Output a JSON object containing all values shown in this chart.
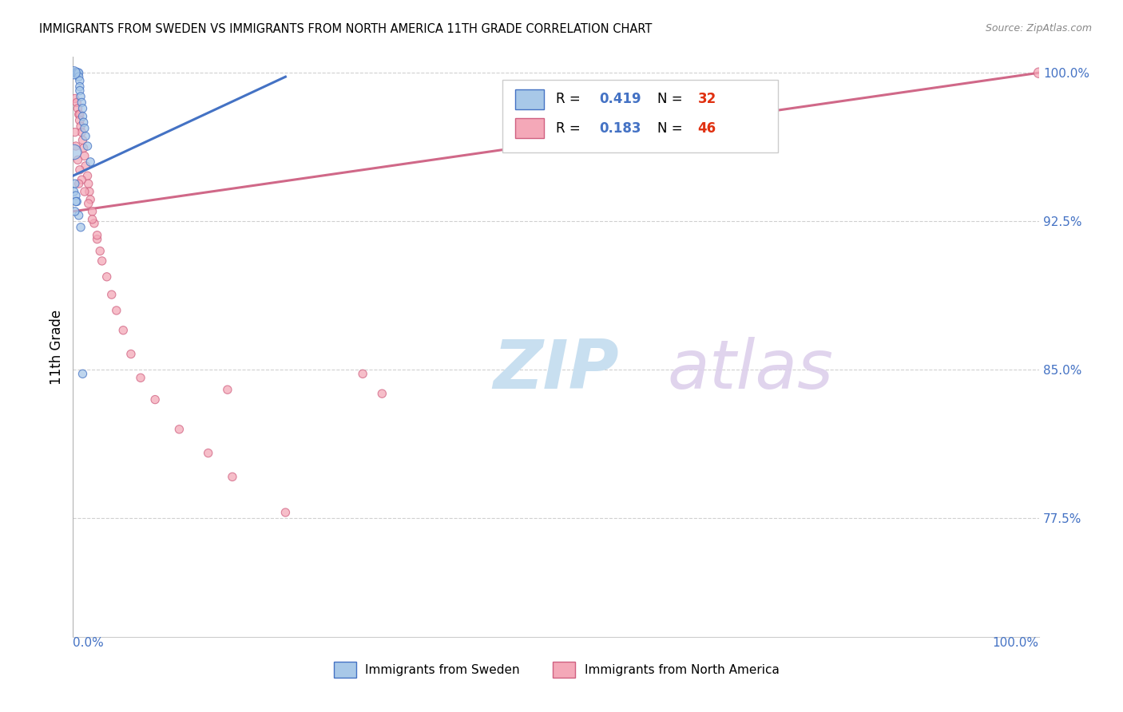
{
  "title": "IMMIGRANTS FROM SWEDEN VS IMMIGRANTS FROM NORTH AMERICA 11TH GRADE CORRELATION CHART",
  "source": "Source: ZipAtlas.com",
  "ylabel": "11th Grade",
  "yticks": [
    0.775,
    0.85,
    0.925,
    1.0
  ],
  "ytick_labels": [
    "77.5%",
    "85.0%",
    "92.5%",
    "100.0%"
  ],
  "legend1_label": "Immigrants from Sweden",
  "legend2_label": "Immigrants from North America",
  "r1": "0.419",
  "n1": "32",
  "r2": "0.183",
  "n2": "46",
  "color_blue": "#a8c8e8",
  "color_pink": "#f4a8b8",
  "edge_blue": "#4472c4",
  "edge_pink": "#d06080",
  "trendline_blue": "#4472c4",
  "trendline_pink": "#d06888",
  "blue_trendline_x": [
    0.0,
    0.22
  ],
  "blue_trendline_y": [
    0.948,
    0.998
  ],
  "pink_trendline_x": [
    0.0,
    1.0
  ],
  "pink_trendline_y": [
    0.93,
    1.0
  ],
  "blue_x": [
    0.002,
    0.003,
    0.003,
    0.004,
    0.004,
    0.005,
    0.005,
    0.006,
    0.006,
    0.007,
    0.007,
    0.007,
    0.008,
    0.009,
    0.01,
    0.01,
    0.011,
    0.012,
    0.013,
    0.015,
    0.018,
    0.002,
    0.001,
    0.003,
    0.004,
    0.006,
    0.008,
    0.01,
    0.001,
    0.001,
    0.002,
    0.003
  ],
  "blue_y": [
    1.0,
    1.0,
    1.0,
    1.0,
    1.0,
    1.0,
    1.0,
    1.0,
    0.998,
    0.996,
    0.993,
    0.991,
    0.988,
    0.985,
    0.982,
    0.978,
    0.975,
    0.972,
    0.968,
    0.963,
    0.955,
    0.944,
    0.94,
    0.938,
    0.935,
    0.928,
    0.922,
    0.848,
    0.96,
    1.0,
    0.93,
    0.935
  ],
  "blue_size": [
    60,
    70,
    60,
    60,
    55,
    55,
    55,
    55,
    55,
    55,
    55,
    55,
    55,
    55,
    55,
    55,
    55,
    55,
    55,
    55,
    55,
    55,
    55,
    55,
    55,
    55,
    55,
    55,
    180,
    120,
    55,
    55
  ],
  "pink_x": [
    0.002,
    0.004,
    0.005,
    0.006,
    0.007,
    0.007,
    0.008,
    0.009,
    0.01,
    0.011,
    0.012,
    0.013,
    0.015,
    0.016,
    0.017,
    0.018,
    0.02,
    0.022,
    0.025,
    0.028,
    0.03,
    0.035,
    0.04,
    0.045,
    0.052,
    0.06,
    0.07,
    0.085,
    0.11,
    0.14,
    0.165,
    0.22,
    0.16,
    0.005,
    0.007,
    0.009,
    0.012,
    0.016,
    0.02,
    0.025,
    0.003,
    0.006,
    0.32,
    0.3,
    0.002,
    1.0
  ],
  "pink_y": [
    0.987,
    0.985,
    0.982,
    0.979,
    0.979,
    0.976,
    0.973,
    0.97,
    0.966,
    0.962,
    0.958,
    0.953,
    0.948,
    0.944,
    0.94,
    0.936,
    0.93,
    0.924,
    0.916,
    0.91,
    0.905,
    0.897,
    0.888,
    0.88,
    0.87,
    0.858,
    0.846,
    0.835,
    0.82,
    0.808,
    0.796,
    0.778,
    0.84,
    0.956,
    0.951,
    0.946,
    0.94,
    0.934,
    0.926,
    0.918,
    0.963,
    0.944,
    0.838,
    0.848,
    0.97,
    1.0
  ],
  "pink_size": [
    55,
    55,
    55,
    55,
    55,
    60,
    55,
    55,
    55,
    55,
    55,
    55,
    55,
    55,
    55,
    55,
    55,
    55,
    55,
    55,
    55,
    55,
    55,
    55,
    55,
    55,
    55,
    55,
    55,
    55,
    55,
    55,
    55,
    55,
    55,
    55,
    55,
    55,
    55,
    55,
    55,
    55,
    55,
    55,
    55,
    80
  ],
  "xlim": [
    0.0,
    1.0
  ],
  "ylim": [
    0.715,
    1.008
  ]
}
